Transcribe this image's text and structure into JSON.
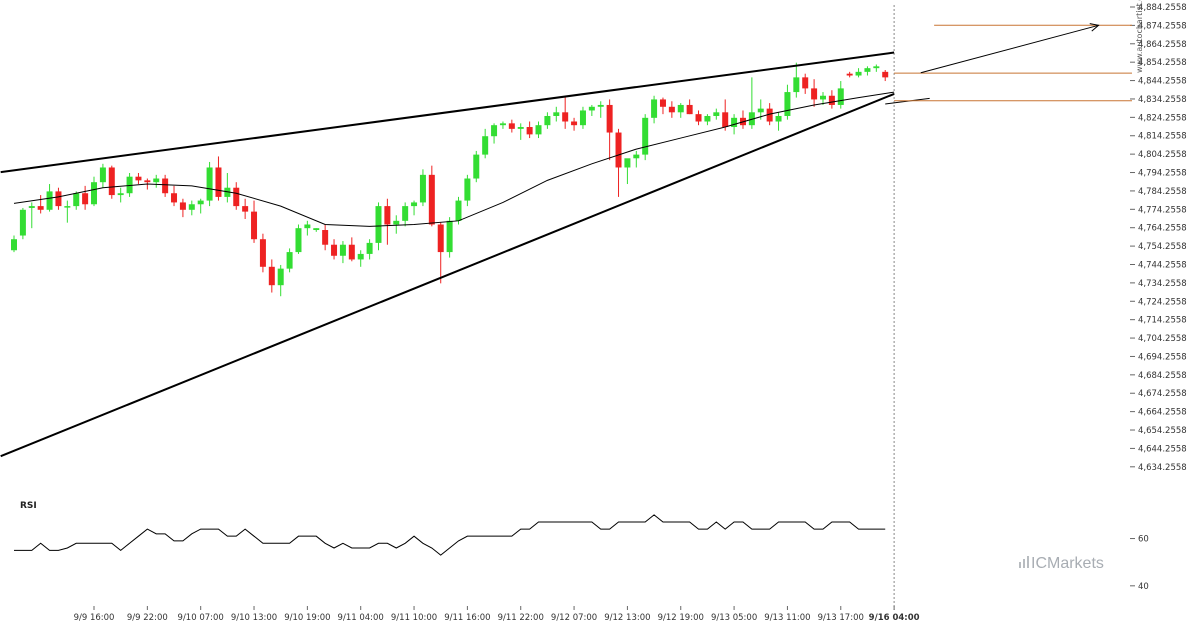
{
  "colors": {
    "bull": "#33dd33",
    "bear": "#ee2222",
    "trendline": "#000000",
    "ma": "#000000",
    "level": "#c87533",
    "arrow": "#000000",
    "rsi": "#000000",
    "grid": "#e8e8e8",
    "divider": "#888888"
  },
  "chart": {
    "type": "candlestick",
    "y_axis": {
      "min": 4629.2558,
      "max": 4884.2558,
      "ticks": [
        "4,884.2558",
        "4,874.2558",
        "4,864.2558",
        "4,854.2558",
        "4,844.2558",
        "4,834.2558",
        "4,824.2558",
        "4,814.2558",
        "4,804.2558",
        "4,794.2558",
        "4,784.2558",
        "4,774.2558",
        "4,764.2558",
        "4,754.2558",
        "4,744.2558",
        "4,734.2558",
        "4,724.2558",
        "4,714.2558",
        "4,704.2558",
        "4,694.2558",
        "4,684.2558",
        "4,674.2558",
        "4,664.2558",
        "4,654.2558",
        "4,644.2558",
        "4,634.2558"
      ],
      "tick_values": [
        4884.2558,
        4874.2558,
        4864.2558,
        4854.2558,
        4844.2558,
        4834.2558,
        4824.2558,
        4814.2558,
        4804.2558,
        4794.2558,
        4784.2558,
        4774.2558,
        4764.2558,
        4754.2558,
        4744.2558,
        4734.2558,
        4724.2558,
        4714.2558,
        4704.2558,
        4694.2558,
        4684.2558,
        4674.2558,
        4664.2558,
        4654.2558,
        4644.2558,
        4634.2558
      ]
    },
    "x_ticks": [
      {
        "label": "9/9 16:00",
        "index": 9,
        "bold": false
      },
      {
        "label": "9/9 22:00",
        "index": 15,
        "bold": false
      },
      {
        "label": "9/10 07:00",
        "index": 21,
        "bold": false
      },
      {
        "label": "9/10 13:00",
        "index": 27,
        "bold": false
      },
      {
        "label": "9/10 19:00",
        "index": 33,
        "bold": false
      },
      {
        "label": "9/11 04:00",
        "index": 39,
        "bold": false
      },
      {
        "label": "9/11 10:00",
        "index": 45,
        "bold": false
      },
      {
        "label": "9/11 16:00",
        "index": 51,
        "bold": false
      },
      {
        "label": "9/11 22:00",
        "index": 57,
        "bold": false
      },
      {
        "label": "9/12 07:00",
        "index": 63,
        "bold": false
      },
      {
        "label": "9/12 13:00",
        "index": 69,
        "bold": false
      },
      {
        "label": "9/12 19:00",
        "index": 75,
        "bold": false
      },
      {
        "label": "9/13 05:00",
        "index": 81,
        "bold": false
      },
      {
        "label": "9/13 11:00",
        "index": 87,
        "bold": false
      },
      {
        "label": "9/13 17:00",
        "index": 93,
        "bold": false
      },
      {
        "label": "9/16 04:00",
        "index": 99,
        "bold": true
      }
    ],
    "divider_index": 99,
    "pattern": {
      "upper_trendline": {
        "from": {
          "index": -1.5,
          "value": 4794.5
        },
        "to": {
          "index": 99,
          "value": 4859.5
        }
      },
      "lower_trendline": {
        "from": {
          "index": -1.5,
          "value": 4640.0
        },
        "to": {
          "index": 99,
          "value": 4837.0
        }
      },
      "forecast_arrow": {
        "from": {
          "index": 102,
          "value": 4848.5
        },
        "to": {
          "index": 122,
          "value": 4874.3
        }
      },
      "lower_projection": {
        "from": {
          "index": 98,
          "value": 4831.5
        },
        "to": {
          "index": 103,
          "value": 4834.6
        }
      },
      "levels": [
        {
          "value": 4874.3,
          "from_index": 103.5
        },
        {
          "value": 4848.3,
          "from_index": 99
        },
        {
          "value": 4833.3,
          "from_index": 99
        }
      ]
    },
    "candles": [
      [
        4752,
        4760,
        4751,
        4758
      ],
      [
        4760,
        4775,
        4758,
        4774
      ],
      [
        4775,
        4778,
        4764,
        4776
      ],
      [
        4776,
        4782,
        4772,
        4774
      ],
      [
        4774,
        4788,
        4773,
        4784
      ],
      [
        4784,
        4786,
        4774,
        4776
      ],
      [
        4776,
        4779,
        4767,
        4776
      ],
      [
        4776,
        4784,
        4774,
        4783
      ],
      [
        4783,
        4787,
        4774,
        4777
      ],
      [
        4777,
        4792,
        4776,
        4789
      ],
      [
        4789,
        4799,
        4786,
        4797
      ],
      [
        4797,
        4798,
        4780,
        4782
      ],
      [
        4782,
        4786,
        4778,
        4783
      ],
      [
        4783,
        4794,
        4781,
        4792
      ],
      [
        4792,
        4794,
        4788,
        4790
      ],
      [
        4790,
        4791,
        4785,
        4789
      ],
      [
        4789,
        4793,
        4786,
        4791
      ],
      [
        4791,
        4793,
        4781,
        4783
      ],
      [
        4783,
        4787,
        4776,
        4778
      ],
      [
        4778,
        4780,
        4770,
        4774
      ],
      [
        4774,
        4779,
        4771,
        4777
      ],
      [
        4777,
        4780,
        4772,
        4779
      ],
      [
        4779,
        4800,
        4776,
        4797
      ],
      [
        4797,
        4803,
        4779,
        4781
      ],
      [
        4781,
        4794,
        4778,
        4786
      ],
      [
        4786,
        4789,
        4774,
        4776
      ],
      [
        4776,
        4780,
        4769,
        4773
      ],
      [
        4773,
        4779,
        4756,
        4758
      ],
      [
        4758,
        4761,
        4740,
        4743
      ],
      [
        4743,
        4747,
        4729,
        4733
      ],
      [
        4733,
        4744,
        4727,
        4742
      ],
      [
        4742,
        4753,
        4740,
        4751
      ],
      [
        4751,
        4766,
        4750,
        4764
      ],
      [
        4764,
        4768,
        4760,
        4766
      ],
      [
        4763,
        4764,
        4762,
        4764
      ],
      [
        4763,
        4766,
        4752,
        4755
      ],
      [
        4755,
        4758,
        4747,
        4749
      ],
      [
        4749,
        4757,
        4745,
        4755
      ],
      [
        4755,
        4759,
        4746,
        4747
      ],
      [
        4747,
        4752,
        4743,
        4750
      ],
      [
        4750,
        4758,
        4747,
        4756
      ],
      [
        4756,
        4778,
        4752,
        4776
      ],
      [
        4776,
        4780,
        4755,
        4766
      ],
      [
        4766,
        4771,
        4761,
        4768
      ],
      [
        4768,
        4778,
        4765,
        4776
      ],
      [
        4776,
        4779,
        4771,
        4778
      ],
      [
        4778,
        4796,
        4776,
        4793
      ],
      [
        4793,
        4798,
        4765,
        4766
      ],
      [
        4766,
        4767,
        4734,
        4751
      ],
      [
        4751,
        4770,
        4748,
        4768
      ],
      [
        4768,
        4781,
        4766,
        4779
      ],
      [
        4779,
        4793,
        4776,
        4791
      ],
      [
        4791,
        4806,
        4789,
        4804
      ],
      [
        4804,
        4818,
        4802,
        4814
      ],
      [
        4814,
        4821,
        4810,
        4820
      ],
      [
        4820,
        4822,
        4818,
        4821
      ],
      [
        4821,
        4823,
        4816,
        4818
      ],
      [
        4818,
        4821,
        4812,
        4819
      ],
      [
        4819,
        4822,
        4813,
        4815
      ],
      [
        4815,
        4822,
        4813,
        4820
      ],
      [
        4820,
        4827,
        4818,
        4825
      ],
      [
        4825,
        4830,
        4822,
        4827
      ],
      [
        4827,
        4836,
        4818,
        4822
      ],
      [
        4822,
        4824,
        4817,
        4820
      ],
      [
        4820,
        4830,
        4818,
        4828
      ],
      [
        4828,
        4831,
        4825,
        4830
      ],
      [
        4830,
        4833,
        4824,
        4831
      ],
      [
        4831,
        4834,
        4801,
        4816
      ],
      [
        4816,
        4818,
        4781,
        4797
      ],
      [
        4797,
        4801,
        4788,
        4802
      ],
      [
        4802,
        4806,
        4797,
        4804
      ],
      [
        4804,
        4826,
        4801,
        4824
      ],
      [
        4824,
        4836,
        4821,
        4834
      ],
      [
        4834,
        4835,
        4826,
        4830
      ],
      [
        4830,
        4833,
        4824,
        4827
      ],
      [
        4827,
        4832,
        4824,
        4831
      ],
      [
        4831,
        4834,
        4826,
        4826
      ],
      [
        4826,
        4828,
        4820,
        4822
      ],
      [
        4822,
        4826,
        4820,
        4825
      ],
      [
        4825,
        4829,
        4823,
        4827
      ],
      [
        4827,
        4834,
        4817,
        4819
      ],
      [
        4819,
        4826,
        4815,
        4824
      ],
      [
        4824,
        4828,
        4818,
        4820
      ],
      [
        4820,
        4846,
        4818,
        4827
      ],
      [
        4827,
        4834,
        4823,
        4829
      ],
      [
        4829,
        4832,
        4820,
        4822
      ],
      [
        4822,
        4827,
        4817,
        4825
      ],
      [
        4825,
        4842,
        4823,
        4838
      ],
      [
        4838,
        4854,
        4835,
        4846
      ],
      [
        4846,
        4848,
        4837,
        4840
      ],
      [
        4840,
        4845,
        4830,
        4834
      ],
      [
        4834,
        4838,
        4831,
        4836
      ],
      [
        4836,
        4839,
        4829,
        4831
      ],
      [
        4831,
        4844,
        4829,
        4840
      ],
      [
        4848,
        4849,
        4846,
        4847
      ],
      [
        4847,
        4851,
        4846,
        4849
      ],
      [
        4849,
        4852,
        4847,
        4851
      ],
      [
        4851,
        4853,
        4849,
        4852
      ],
      [
        4849,
        4850,
        4844,
        4846
      ]
    ],
    "ma": [
      [
        0,
        4777.5
      ],
      [
        5,
        4781
      ],
      [
        10,
        4786
      ],
      [
        15,
        4788
      ],
      [
        20,
        4787
      ],
      [
        25,
        4783
      ],
      [
        30,
        4776
      ],
      [
        35,
        4766
      ],
      [
        40,
        4765
      ],
      [
        45,
        4766
      ],
      [
        50,
        4768
      ],
      [
        55,
        4778
      ],
      [
        60,
        4790
      ],
      [
        65,
        4799
      ],
      [
        70,
        4807
      ],
      [
        75,
        4813
      ],
      [
        80,
        4819
      ],
      [
        85,
        4826
      ],
      [
        90,
        4831
      ],
      [
        95,
        4835
      ],
      [
        99,
        4838
      ]
    ]
  },
  "rsi": {
    "label": "RSI",
    "y_ticks": [
      {
        "label": "60",
        "value": 60
      },
      {
        "label": "40",
        "value": 40
      }
    ],
    "y_range": [
      34,
      78
    ],
    "values": [
      55,
      55,
      55,
      58,
      55,
      55,
      56,
      58,
      58,
      58,
      58,
      58,
      55,
      58,
      61,
      64,
      62,
      62,
      59,
      59,
      62,
      64,
      64,
      64,
      61,
      61,
      64,
      61,
      58,
      58,
      58,
      58,
      61,
      61,
      61,
      58,
      56,
      58,
      56,
      56,
      56,
      58,
      58,
      56,
      58,
      61,
      58,
      56,
      53,
      56,
      59,
      61,
      61,
      61,
      61,
      61,
      61,
      64,
      64,
      67,
      67,
      67,
      67,
      67,
      67,
      67,
      64,
      64,
      67,
      67,
      67,
      67,
      70,
      67,
      67,
      67,
      67,
      64,
      64,
      67,
      64,
      67,
      67,
      64,
      64,
      64,
      67,
      67,
      67,
      67,
      64,
      64,
      67,
      67,
      67,
      64,
      64,
      64,
      64
    ]
  },
  "watermark": {
    "site": "www.autochartist.com",
    "brand_prefix": "IC",
    "brand_suffix": "Markets"
  }
}
